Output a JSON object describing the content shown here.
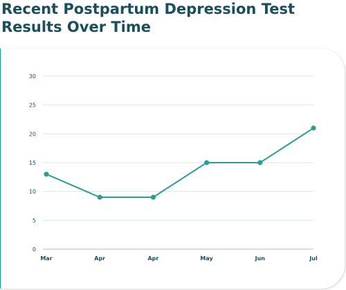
{
  "title": "Recent Postpartum Depression Test Results Over Time",
  "chart_data": {
    "type": "line",
    "title": "Recent Postpartum Depression Test Results Over Time",
    "categories": [
      "Mar",
      "Apr",
      "Apr",
      "May",
      "Jun",
      "Jul"
    ],
    "values": [
      13,
      9,
      9,
      15,
      15,
      21
    ],
    "xlabel": "",
    "ylabel": "",
    "ylim": [
      0,
      30
    ],
    "yticks": [
      0,
      5,
      10,
      15,
      20,
      25,
      30
    ],
    "grid": true,
    "legend": "none",
    "line_color": "#2a9d98",
    "grid_color": "#d9e6ee",
    "axis_text_color": "#1a4e5c"
  }
}
